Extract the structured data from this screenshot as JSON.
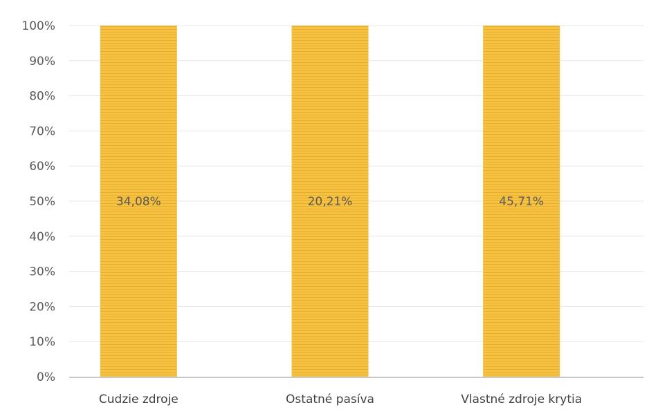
{
  "chart_data": {
    "type": "bar",
    "stacked": "percent",
    "categories": [
      "Cudzie zdroje",
      "Ostatné pasíva",
      "Vlastné zdroje krytia"
    ],
    "series": [
      {
        "values": [
          34.08,
          20.21,
          45.71
        ]
      }
    ],
    "data_labels": [
      "34,08%",
      "20,21%",
      "45,71%"
    ],
    "y_ticks": [
      "0%",
      "10%",
      "20%",
      "30%",
      "40%",
      "50%",
      "60%",
      "70%",
      "80%",
      "90%",
      "100%"
    ],
    "ylim": [
      0,
      100
    ],
    "grid": true,
    "legend": "none",
    "colors": {
      "bar": "#f6c244",
      "bar_stripe": "#e9ad2a",
      "grid": "#e6e6e6",
      "axis": "#c8c8c8"
    }
  }
}
